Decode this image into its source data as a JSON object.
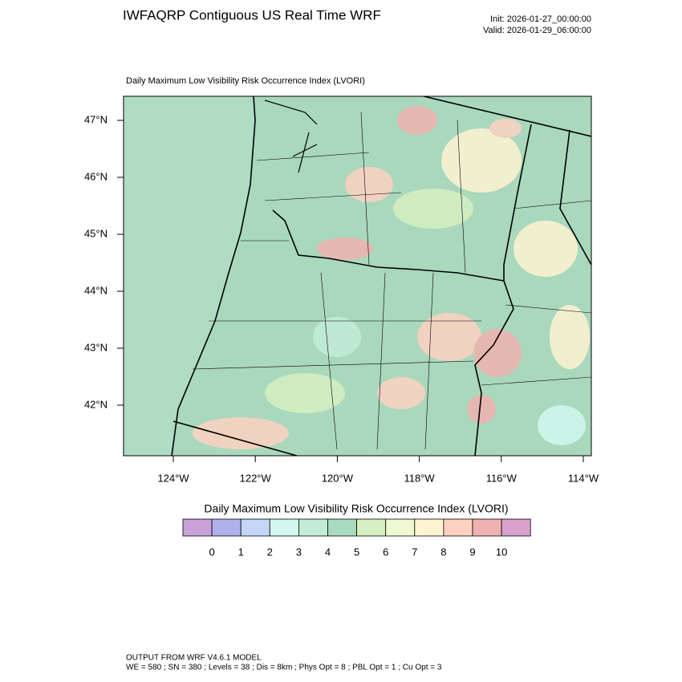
{
  "header": {
    "title": "IWFAQRP Contiguous US Real Time WRF",
    "init": "Init: 2026-01-27_00:00:00",
    "valid": "Valid: 2026-01-29_06:00:00"
  },
  "map": {
    "title": "Daily Maximum Low Visibility Risk Occurrence Index   (LVORI)",
    "lat_labels": [
      "47°N",
      "46°N",
      "45°N",
      "44°N",
      "43°N",
      "42°N"
    ],
    "lon_labels": [
      "124°W",
      "122°W",
      "120°W",
      "118°W",
      "116°W",
      "114°W"
    ]
  },
  "colorbar": {
    "title": "Daily Maximum Low Visibility Risk Occurrence Index  (LVORI)",
    "colors": [
      "#c8a2d9",
      "#b0b0ec",
      "#c2d6f8",
      "#d2f8ef",
      "#c2ecd6",
      "#a9dbbf",
      "#d6f0c2",
      "#f0f8d2",
      "#fff4d2",
      "#fdd2c2",
      "#f0b2b0",
      "#d9a2cc"
    ],
    "labels": [
      "0",
      "1",
      "2",
      "3",
      "4",
      "5",
      "6",
      "7",
      "8",
      "9",
      "10"
    ]
  },
  "footer": {
    "lines": [
      "OUTPUT FROM WRF V4.6.1 MODEL",
      "WE = 580 ; SN = 380 ; Levels = 38 ; Dis = 8km ; Phys Opt = 8 ; PBL Opt = 1 ; Cu Opt = 3"
    ]
  }
}
